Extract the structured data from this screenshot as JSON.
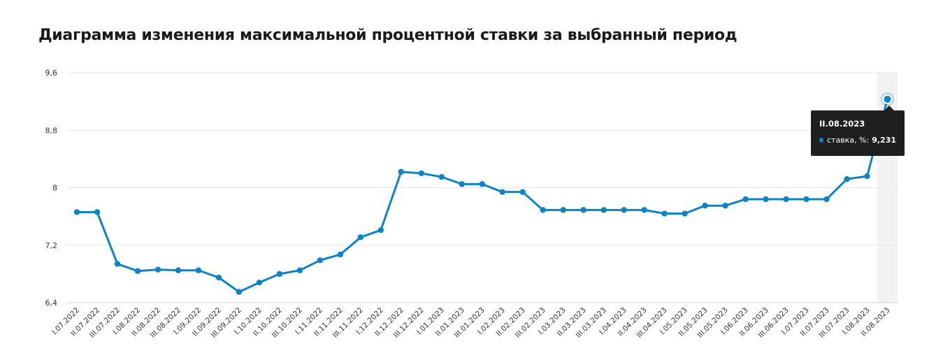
{
  "title": "Диаграмма изменения максимальной процентной ставки за выбранный период",
  "tooltip": {
    "date": "II.08.2023",
    "series_label": "ставка, %:",
    "value": "9,231"
  },
  "colors": {
    "line": "#0a84c6",
    "grid": "#e6e6e6",
    "highlight": "#f2f2f2",
    "tooltip_bg": "#1f1f1f"
  },
  "chart_data": {
    "type": "line",
    "title": "Диаграмма изменения максимальной процентной ставки за выбранный период",
    "xlabel": "",
    "ylabel": "",
    "ylim": [
      6.4,
      9.6
    ],
    "yticks": [
      6.4,
      7.2,
      8,
      8.8,
      9.6
    ],
    "ytick_labels": [
      "6,4",
      "7,2",
      "8",
      "8,8",
      "9,6"
    ],
    "grid": true,
    "highlighted_category": "II.08.2023",
    "categories": [
      "I.07.2022",
      "II.07.2022",
      "III.07.2022",
      "I.08.2022",
      "II.08.2022",
      "III.08.2022",
      "I.09.2022",
      "II.09.2022",
      "III.09.2022",
      "I.10.2022",
      "II.10.2022",
      "III.10.2022",
      "I.11.2022",
      "II.11.2022",
      "III.11.2022",
      "I.12.2022",
      "II.12.2022",
      "III.12.2022",
      "I.01.2023",
      "II.01.2023",
      "III.01.2023",
      "I.02.2023",
      "II.02.2023",
      "III.02.2023",
      "I.03.2023",
      "II.03.2023",
      "III.03.2023",
      "I.04.2023",
      "II.04.2023",
      "III.04.2023",
      "I.05.2023",
      "II.05.2023",
      "III.05.2023",
      "I.06.2023",
      "II.06.2023",
      "III.06.2023",
      "I.07.2023",
      "II.07.2023",
      "III.07.2023",
      "I.08.2023",
      "II.08.2023"
    ],
    "series": [
      {
        "name": "ставка, %",
        "values": [
          7.66,
          7.66,
          6.94,
          6.84,
          6.86,
          6.85,
          6.85,
          6.75,
          6.55,
          6.68,
          6.8,
          6.85,
          6.99,
          7.07,
          7.31,
          7.41,
          8.22,
          8.2,
          8.15,
          8.05,
          8.05,
          7.94,
          7.94,
          7.69,
          7.69,
          7.69,
          7.69,
          7.69,
          7.69,
          7.64,
          7.64,
          7.75,
          7.75,
          7.84,
          7.84,
          7.84,
          7.84,
          7.84,
          8.12,
          8.16,
          9.231
        ]
      }
    ]
  }
}
